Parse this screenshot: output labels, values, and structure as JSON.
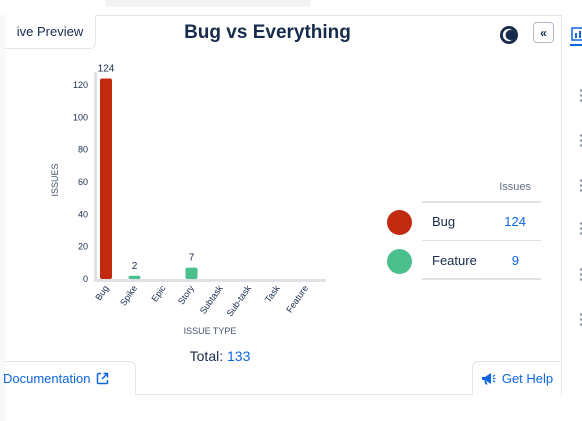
{
  "tabs": {
    "preview_label": "ive Preview"
  },
  "title": "Bug vs Everything",
  "header_buttons": {
    "collapse_label": "«"
  },
  "chart_data": {
    "type": "bar",
    "categories": [
      "Bug",
      "Spike",
      "Epic",
      "Story",
      "Subtask",
      "Sub-task",
      "Task",
      "Feature"
    ],
    "values": [
      124,
      2,
      0,
      7,
      0,
      0,
      0,
      0
    ],
    "bar_colors": [
      "#c12a0f",
      "#4bbf8c",
      "#4bbf8c",
      "#4bbf8c",
      "#4bbf8c",
      "#4bbf8c",
      "#4bbf8c",
      "#4bbf8c"
    ],
    "data_labels": [
      "124",
      "2",
      "",
      "7",
      "",
      "",
      "",
      ""
    ],
    "xlabel": "ISSUE TYPE",
    "ylabel": "ISSUES",
    "yticks": [
      0,
      20,
      40,
      60,
      80,
      100,
      120
    ],
    "ylim": [
      0,
      128
    ],
    "grid": false
  },
  "legend": {
    "header": "Issues",
    "items": [
      {
        "label": "Bug",
        "count": "124",
        "color": "#c12a0f"
      },
      {
        "label": "Feature",
        "count": "9",
        "color": "#4bbf8c"
      }
    ]
  },
  "total": {
    "label": "Total:",
    "value": "133"
  },
  "footer": {
    "documentation_label": "Documentation",
    "help_label": "Get Help"
  }
}
